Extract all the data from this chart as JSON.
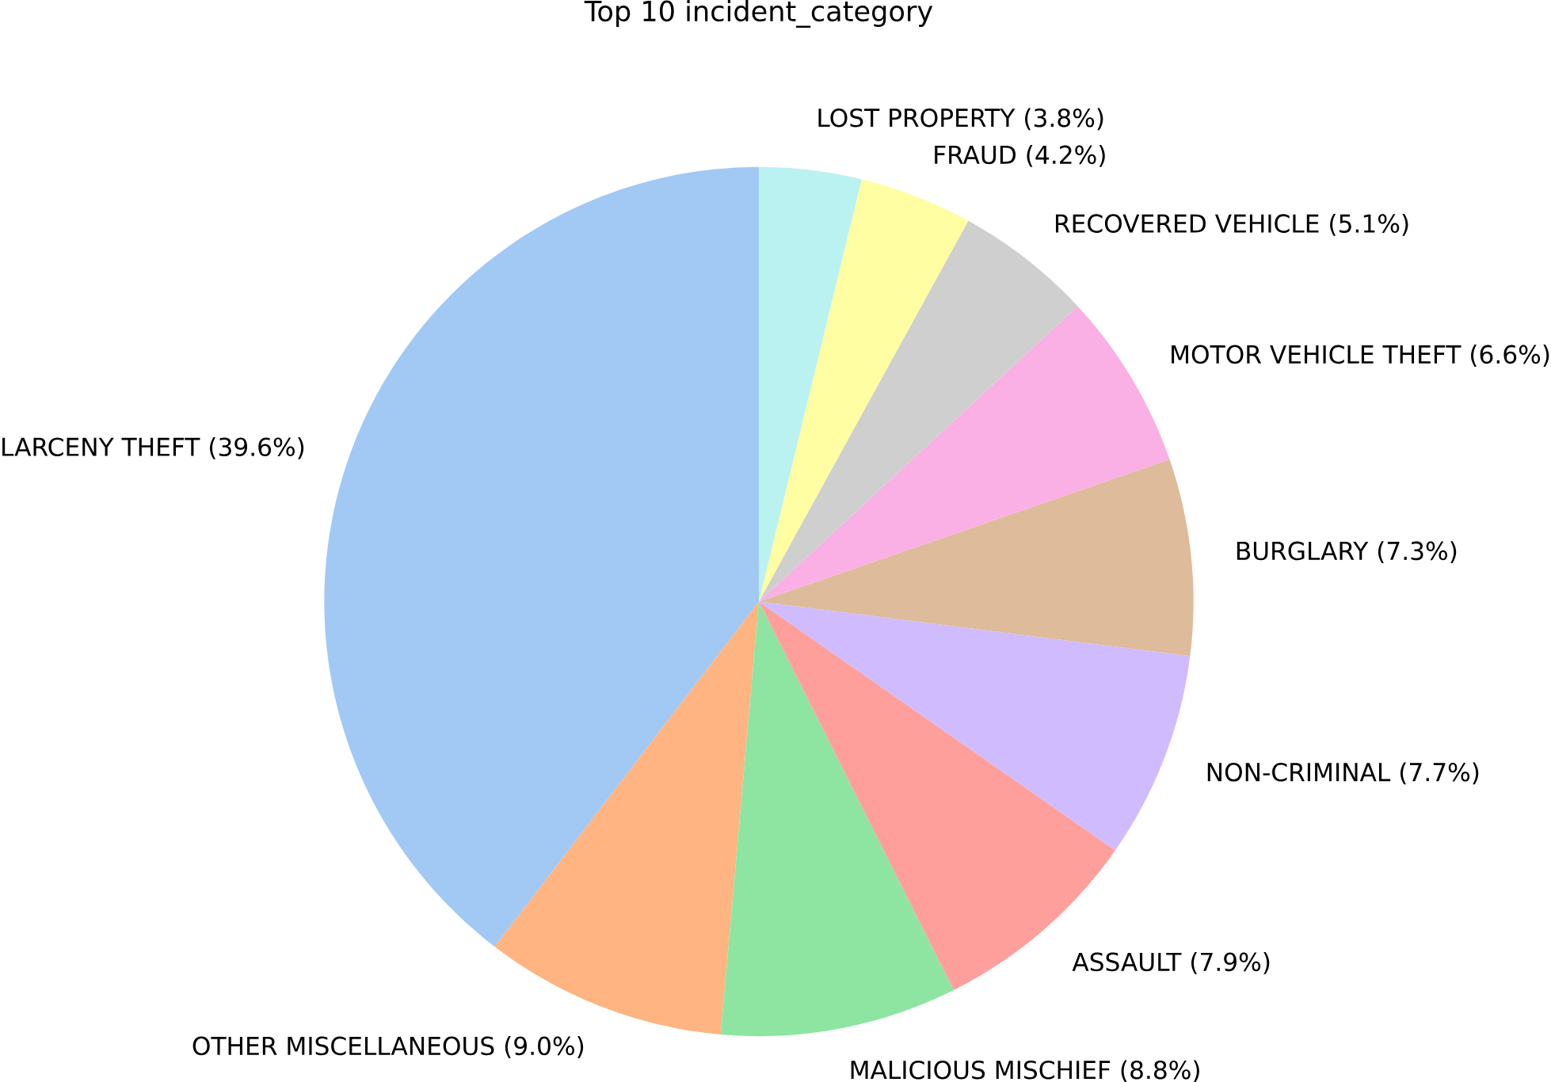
{
  "chart_data": {
    "type": "pie",
    "title": "Top 10 incident_category",
    "categories": [
      "LARCENY THEFT (39.6%)",
      "OTHER MISCELLANEOUS (9.0%)",
      "MALICIOUS MISCHIEF (8.8%)",
      "ASSAULT (7.9%)",
      "NON-CRIMINAL (7.7%)",
      "BURGLARY (7.3%)",
      "MOTOR VEHICLE THEFT (6.6%)",
      "RECOVERED VEHICLE (5.1%)",
      "FRAUD (4.2%)",
      "LOST PROPERTY (3.8%)"
    ],
    "values": [
      39.6,
      9.0,
      8.8,
      7.9,
      7.7,
      7.3,
      6.6,
      5.1,
      4.2,
      3.8
    ],
    "colors": [
      "#a1c9f4",
      "#ffb482",
      "#8de5a1",
      "#ff9f9b",
      "#d0bbff",
      "#debb9b",
      "#fab0e4",
      "#cfcfcf",
      "#fffea3",
      "#b9f2f0"
    ]
  }
}
